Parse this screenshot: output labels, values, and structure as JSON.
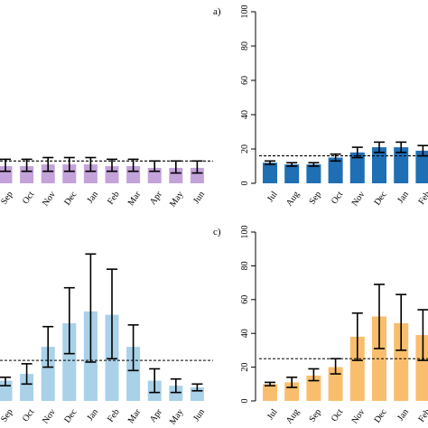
{
  "chart_data": [
    {
      "id": "top-left",
      "type": "bar",
      "panel_label": "",
      "color": "#c3a3d9",
      "categories": [
        "Sep",
        "Oct",
        "Nov",
        "Dec",
        "Jan",
        "Feb",
        "Mar",
        "Apr",
        "May",
        "Jun"
      ],
      "values": [
        10,
        10,
        11,
        11,
        11,
        10,
        10,
        9,
        9,
        9
      ],
      "err_low": [
        7,
        7,
        7,
        7,
        7,
        7,
        7,
        7,
        6,
        6
      ],
      "err_high": [
        14,
        14,
        15,
        15,
        15,
        14,
        14,
        13,
        13,
        13
      ],
      "reference": 13,
      "ylim": [
        0,
        100
      ]
    },
    {
      "id": "top-right",
      "type": "bar",
      "panel_label": "a)",
      "color": "#1f6fb4",
      "categories": [
        "Jul",
        "Aug",
        "Sep",
        "Oct",
        "Nov",
        "Dec",
        "Jan",
        "Feb"
      ],
      "values": [
        12,
        11,
        11,
        15,
        18,
        21,
        21,
        19
      ],
      "err_low": [
        11,
        10,
        10,
        13,
        15,
        18,
        18,
        16
      ],
      "err_high": [
        13,
        12,
        12,
        17,
        21,
        24,
        24,
        22
      ],
      "reference": 16,
      "ylim": [
        0,
        100
      ],
      "yticks": [
        0,
        20,
        40,
        60,
        80,
        100
      ]
    },
    {
      "id": "bottom-left",
      "type": "bar",
      "panel_label": "c)",
      "color": "#a9d1e8",
      "categories": [
        "Sep",
        "Oct",
        "Nov",
        "Dec",
        "Jan",
        "Feb",
        "Mar",
        "Apr",
        "May",
        "Jun"
      ],
      "values": [
        12,
        16,
        32,
        46,
        53,
        51,
        32,
        12,
        9,
        8
      ],
      "err_low": [
        9,
        10,
        20,
        28,
        23,
        25,
        18,
        5,
        5,
        6
      ],
      "err_high": [
        14,
        22,
        44,
        67,
        87,
        78,
        45,
        19,
        13,
        10
      ],
      "reference": 24,
      "ylim": [
        0,
        100
      ]
    },
    {
      "id": "bottom-right",
      "type": "bar",
      "panel_label": "",
      "color": "#f9be6d",
      "categories": [
        "Jul",
        "Aug",
        "Sep",
        "Oct",
        "Nov",
        "Dec",
        "Jan",
        "Feb"
      ],
      "values": [
        10,
        11,
        15,
        20,
        38,
        50,
        46,
        39
      ],
      "err_low": [
        9,
        8,
        12,
        16,
        24,
        31,
        30,
        24
      ],
      "err_high": [
        11,
        14,
        19,
        25,
        52,
        69,
        63,
        54
      ],
      "reference": 25,
      "ylim": [
        0,
        100
      ],
      "yticks": [
        0,
        20,
        40,
        60,
        80,
        100
      ]
    }
  ]
}
